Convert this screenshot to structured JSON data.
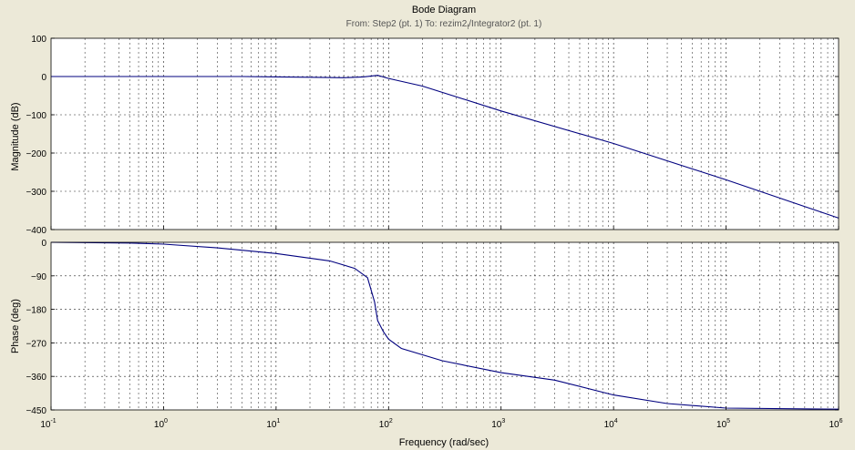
{
  "colors": {
    "figure_background": "#ECE9D8",
    "axes_background": "#FFFFFF",
    "line": "#00007F",
    "grid": "#000000",
    "subtitle": "#555555"
  },
  "chart_data": {
    "type": "line",
    "title": "Bode Diagram",
    "subtitle": {
      "from_prefix": "From: Step2 (pt. 1)  To: rezim2",
      "subscript": "f",
      "to_suffix": "/Integrator2 (pt. 1)"
    },
    "xlabel": "Frequency  (rad/sec)",
    "xscale": "log",
    "xlim": [
      0.1,
      1000000
    ],
    "x_ticks": [
      {
        "value": 0.1,
        "base": "10",
        "exp": "-1"
      },
      {
        "value": 1,
        "base": "10",
        "exp": "0"
      },
      {
        "value": 10,
        "base": "10",
        "exp": "1"
      },
      {
        "value": 100,
        "base": "10",
        "exp": "2"
      },
      {
        "value": 1000,
        "base": "10",
        "exp": "3"
      },
      {
        "value": 10000,
        "base": "10",
        "exp": "4"
      },
      {
        "value": 100000,
        "base": "10",
        "exp": "5"
      },
      {
        "value": 1000000,
        "base": "10",
        "exp": "6"
      }
    ],
    "grid": true,
    "panels": [
      {
        "name": "magnitude",
        "ylabel": "Magnitude (dB)",
        "ylim": [
          -400,
          100
        ],
        "yticks": [
          100,
          0,
          -100,
          -200,
          -300,
          -400
        ],
        "ytick_labels": [
          "100",
          "0",
          "−100",
          "−200",
          "−300",
          "−400"
        ],
        "x": [
          0.1,
          1,
          5,
          10,
          20,
          40,
          60,
          80,
          100,
          200,
          1000,
          10000,
          100000,
          1000000
        ],
        "y": [
          0,
          0,
          0,
          -1,
          -2,
          -3,
          -1,
          3,
          -5,
          -25,
          -90,
          -175,
          -270,
          -370
        ]
      },
      {
        "name": "phase",
        "ylabel": "Phase (deg)",
        "ylim": [
          -450,
          0
        ],
        "yticks": [
          0,
          -90,
          -180,
          -270,
          -360,
          -450
        ],
        "ytick_labels": [
          "0",
          "−90",
          "−180",
          "−270",
          "−360",
          "−450"
        ],
        "x": [
          0.1,
          0.5,
          1,
          3,
          10,
          30,
          50,
          65,
          75,
          80,
          90,
          100,
          130,
          300,
          1000,
          3000,
          10000,
          30000,
          100000,
          1000000
        ],
        "y": [
          0,
          -2,
          -5,
          -15,
          -30,
          -50,
          -70,
          -95,
          -160,
          -210,
          -240,
          -260,
          -285,
          -318,
          -350,
          -370,
          -410,
          -433,
          -445,
          -448
        ]
      }
    ]
  }
}
